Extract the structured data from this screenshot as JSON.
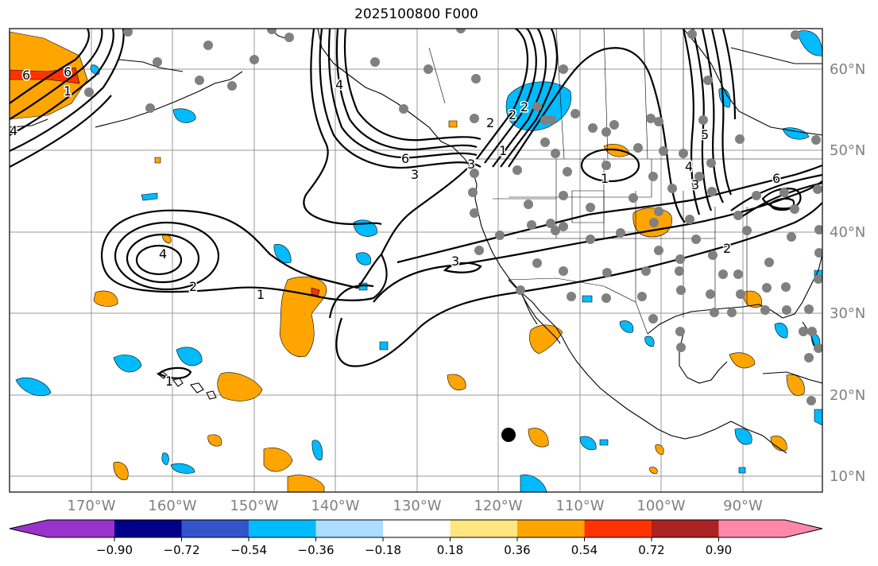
{
  "title": "2025100800 F000",
  "map": {
    "lon_labels": [
      "170°W",
      "160°W",
      "150°W",
      "140°W",
      "130°W",
      "120°W",
      "110°W",
      "100°W",
      "90°W"
    ],
    "lat_labels": [
      "60°N",
      "50°N",
      "40°N",
      "30°N",
      "20°N",
      "10°N"
    ],
    "contour_labels": [
      "6",
      "4",
      "6",
      "3",
      "3",
      "2",
      "1",
      "2",
      "1",
      "2",
      "3",
      "4",
      "1",
      "2",
      "3",
      "4",
      "5",
      "6",
      "6",
      "4",
      "1",
      "1",
      "2"
    ],
    "marker": "storm-center-dot"
  },
  "colorbar": {
    "tick_labels": [
      "−0.90",
      "−0.72",
      "−0.54",
      "−0.36",
      "−0.18",
      "0.18",
      "0.36",
      "0.54",
      "0.72",
      "0.90"
    ],
    "colors": [
      "#9933cc",
      "#000088",
      "#3355cc",
      "#00bbff",
      "#aaddff",
      "#ffffff",
      "#ffe680",
      "#ffa500",
      "#ff3300",
      "#aa2222",
      "#ff88aa"
    ]
  }
}
